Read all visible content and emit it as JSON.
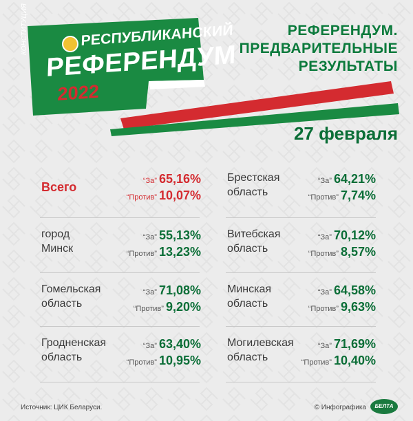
{
  "logo": {
    "line1": "РЕСПУБЛИКАНСКИЙ",
    "line2": "РЕФЕРЕНДУМ",
    "year": "2022",
    "side_text": "КОНСТИТУЦИЯ"
  },
  "title": {
    "line1": "РЕФЕРЕНДУМ.",
    "line2": "ПРЕДВАРИТЕЛЬНЫЕ",
    "line3": "РЕЗУЛЬТАТЫ"
  },
  "date": "27 февраля",
  "labels": {
    "for": "“За”",
    "against": "“Против”"
  },
  "results": [
    {
      "region_l1": "Всего",
      "region_l2": "",
      "for": "65,16%",
      "against": "10,07%"
    },
    {
      "region_l1": "Брестская",
      "region_l2": "область",
      "for": "64,21%",
      "against": "7,74%"
    },
    {
      "region_l1": "город",
      "region_l2": "Минск",
      "for": "55,13%",
      "against": "13,23%"
    },
    {
      "region_l1": "Витебская",
      "region_l2": "область",
      "for": "70,12%",
      "against": "8,57%"
    },
    {
      "region_l1": "Гомельская",
      "region_l2": "область",
      "for": "71,08%",
      "against": "9,20%"
    },
    {
      "region_l1": "Минская",
      "region_l2": "область",
      "for": "64,58%",
      "against": "9,63%"
    },
    {
      "region_l1": "Гродненская",
      "region_l2": "область",
      "for": "63,40%",
      "against": "10,95%"
    },
    {
      "region_l1": "Могилевская",
      "region_l2": "область",
      "for": "71,69%",
      "against": "10,40%"
    }
  ],
  "footer": {
    "source": "Источник: ЦИК Беларуси.",
    "copyright": "© Инфографика",
    "agency": "БЕЛТА"
  },
  "colors": {
    "green": "#0b7a3c",
    "red": "#d42b30",
    "background": "#ececec"
  }
}
